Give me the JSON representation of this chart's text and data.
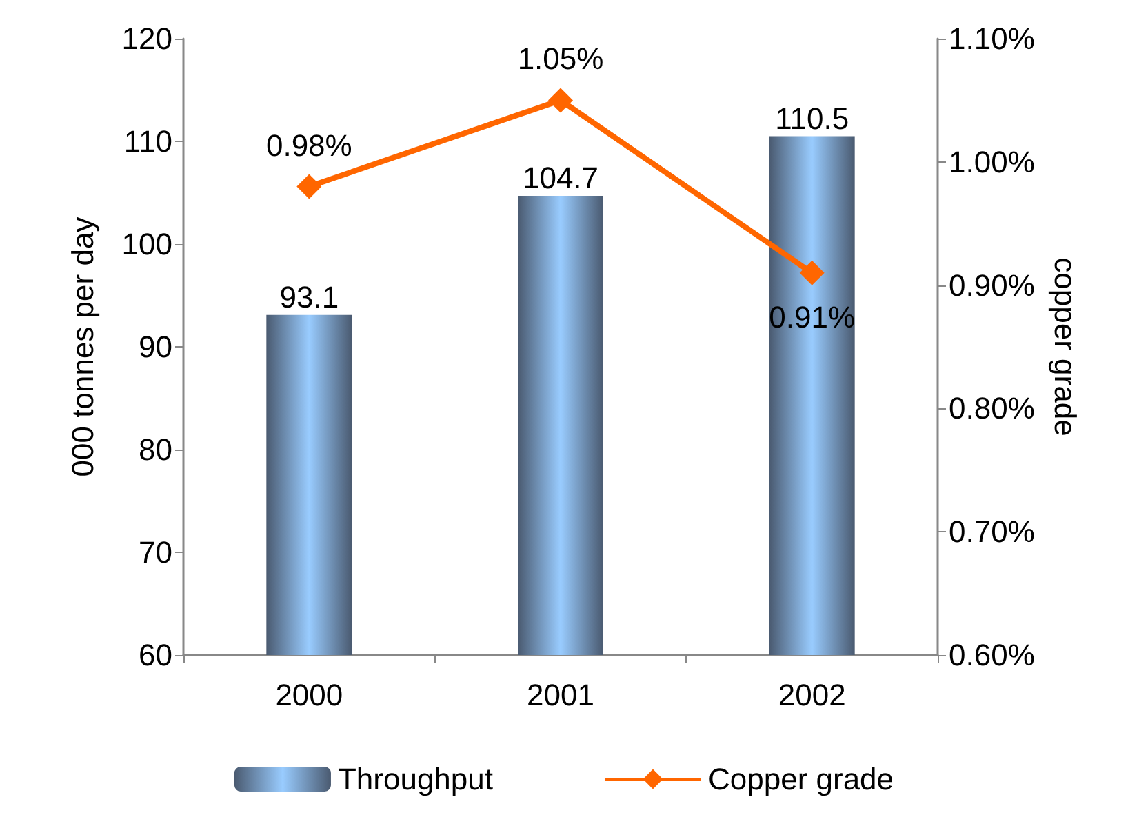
{
  "chart_data": {
    "type": "bar",
    "categories": [
      "2000",
      "2001",
      "2002"
    ],
    "ylabel": "000 tonnes per day",
    "y2label": "copper grade",
    "ylim": [
      60,
      120
    ],
    "yticks": [
      60,
      70,
      80,
      90,
      100,
      110,
      120
    ],
    "y2lim": [
      0.6,
      1.1
    ],
    "y2ticks": [
      {
        "value": 0.6,
        "label": "0.60%"
      },
      {
        "value": 0.7,
        "label": "0.70%"
      },
      {
        "value": 0.8,
        "label": "0.80%"
      },
      {
        "value": 0.9,
        "label": "0.90%"
      },
      {
        "value": 1.0,
        "label": "1.00%"
      },
      {
        "value": 1.1,
        "label": "1.10%"
      }
    ],
    "series": [
      {
        "name": "Throughput",
        "color": "#99ccff",
        "values": [
          93.1,
          104.7,
          110.5
        ],
        "value_labels": [
          "93.1",
          "104.7",
          "110.5"
        ]
      },
      {
        "name": "Copper grade",
        "type": "line",
        "axis": "y2",
        "color": "#ff6600",
        "marker": "diamond",
        "values": [
          0.98,
          1.05,
          0.91
        ],
        "value_labels": [
          "0.98%",
          "1.05%",
          "0.91%"
        ]
      }
    ],
    "grid": false,
    "legend": "bottom"
  }
}
